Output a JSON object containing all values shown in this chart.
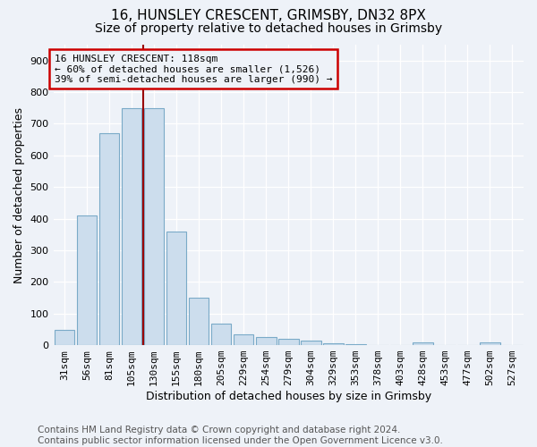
{
  "title1": "16, HUNSLEY CRESCENT, GRIMSBY, DN32 8PX",
  "title2": "Size of property relative to detached houses in Grimsby",
  "xlabel": "Distribution of detached houses by size in Grimsby",
  "ylabel": "Number of detached properties",
  "footnote": "Contains HM Land Registry data © Crown copyright and database right 2024.\nContains public sector information licensed under the Open Government Licence v3.0.",
  "categories": [
    "31sqm",
    "56sqm",
    "81sqm",
    "105sqm",
    "130sqm",
    "155sqm",
    "180sqm",
    "205sqm",
    "229sqm",
    "254sqm",
    "279sqm",
    "304sqm",
    "329sqm",
    "353sqm",
    "378sqm",
    "403sqm",
    "428sqm",
    "453sqm",
    "477sqm",
    "502sqm",
    "527sqm"
  ],
  "values": [
    47,
    410,
    670,
    750,
    750,
    360,
    150,
    68,
    35,
    27,
    20,
    15,
    7,
    3,
    0,
    0,
    8,
    0,
    0,
    8,
    0
  ],
  "bar_color": "#ccdded",
  "bar_edge_color": "#7aaac8",
  "annotation_box_color": "#cc0000",
  "vline_color": "#990000",
  "vline_x": 3.5,
  "annotation_line1": "16 HUNSLEY CRESCENT: 118sqm",
  "annotation_line2": "← 60% of detached houses are smaller (1,526)",
  "annotation_line3": "39% of semi-detached houses are larger (990) →",
  "ylim": [
    0,
    950
  ],
  "yticks": [
    0,
    100,
    200,
    300,
    400,
    500,
    600,
    700,
    800,
    900
  ],
  "background_color": "#eef2f8",
  "grid_color": "#ffffff",
  "title1_fontsize": 11,
  "title2_fontsize": 10,
  "axis_label_fontsize": 9,
  "tick_fontsize": 8,
  "footnote_fontsize": 7.5
}
